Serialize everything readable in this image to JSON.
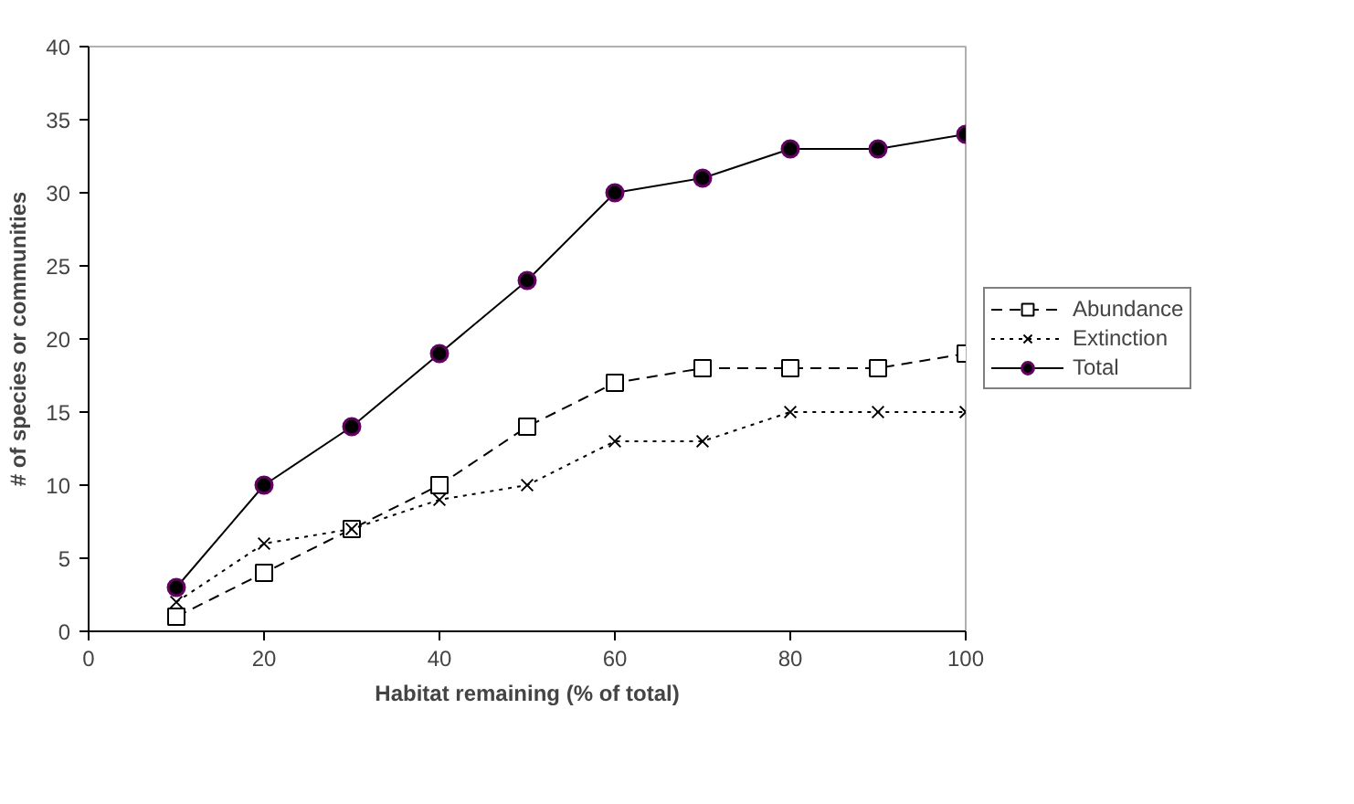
{
  "chart_data": {
    "type": "line",
    "xlabel": "Habitat remaining (% of total)",
    "ylabel": "# of species or communities",
    "x": [
      10,
      20,
      30,
      40,
      50,
      60,
      70,
      80,
      90,
      100
    ],
    "series": [
      {
        "name": "Abundance",
        "color": "#000000",
        "marker": "square",
        "line_style": "dashed",
        "values": [
          1,
          4,
          7,
          10,
          14,
          17,
          18,
          18,
          18,
          19
        ]
      },
      {
        "name": "Extinction",
        "color": "#000000",
        "marker": "cross",
        "line_style": "dotted",
        "values": [
          2,
          6,
          7,
          9,
          10,
          13,
          13,
          15,
          15,
          15
        ]
      },
      {
        "name": "Total",
        "color": "#000000",
        "marker": "circle",
        "line_style": "solid",
        "values": [
          3,
          10,
          14,
          19,
          24,
          30,
          31,
          33,
          33,
          34
        ]
      }
    ],
    "xlim": [
      0,
      100
    ],
    "ylim": [
      0,
      40
    ],
    "xticks": [
      0,
      20,
      40,
      60,
      80,
      100
    ],
    "yticks": [
      0,
      5,
      10,
      15,
      20,
      25,
      30,
      35,
      40
    ],
    "grid": false,
    "legend": "right"
  }
}
